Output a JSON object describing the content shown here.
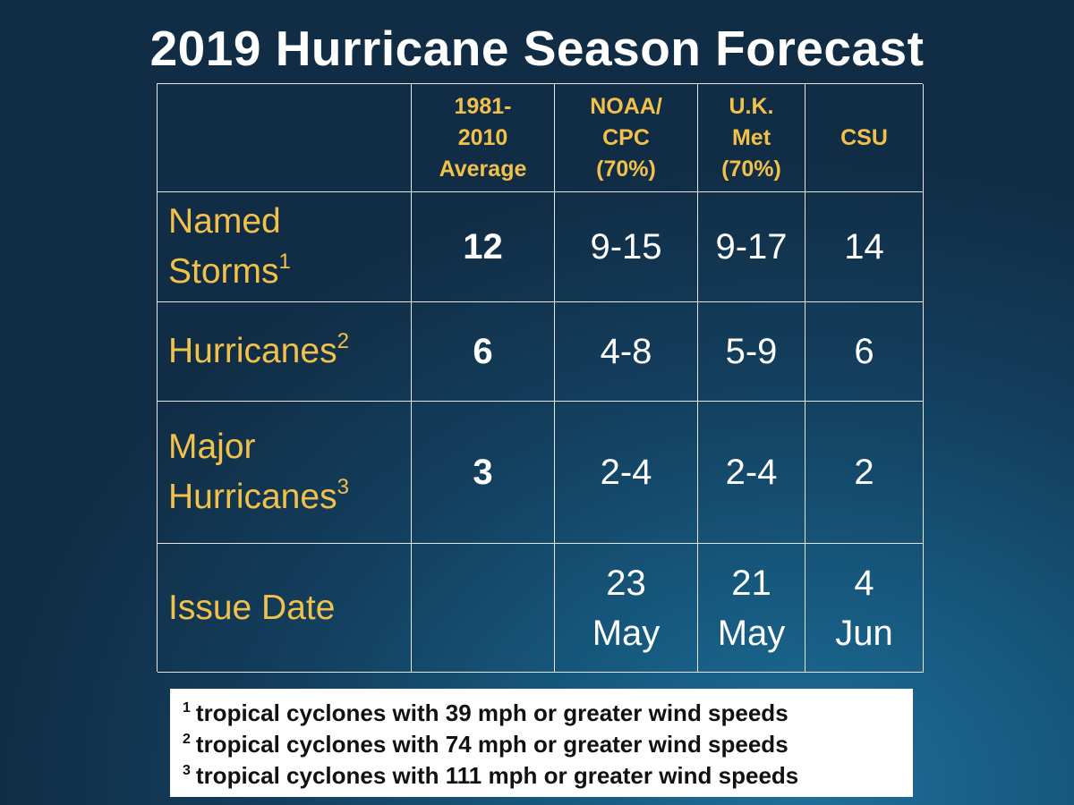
{
  "title": "2019 Hurricane Season Forecast",
  "table": {
    "headers": [
      "",
      "1981-\n2010\nAverage",
      "NOAA/\nCPC\n(70%)",
      "U.K.\nMet\n(70%)",
      "CSU"
    ],
    "rows": [
      {
        "label": "Named\nStorms",
        "sup": "1",
        "values": [
          "12",
          "9-15",
          "9-17",
          "14"
        ]
      },
      {
        "label": "Hurricanes",
        "sup": "2",
        "values": [
          "6",
          "4-8",
          "5-9",
          "6"
        ]
      },
      {
        "label": "Major\nHurricanes",
        "sup": "3",
        "values": [
          "3",
          "2-4",
          "2-4",
          "2"
        ]
      },
      {
        "label": "Issue Date",
        "sup": "",
        "values": [
          "",
          "23\nMay",
          "21\nMay",
          "4\nJun"
        ]
      }
    ]
  },
  "footnotes": [
    {
      "num": "1",
      "text": "tropical cyclones with 39 mph or greater wind speeds"
    },
    {
      "num": "2",
      "text": "tropical cyclones with 74 mph or greater wind speeds"
    },
    {
      "num": "3",
      "text": "tropical cyclones with 111 mph or greater wind speeds"
    }
  ],
  "colors": {
    "header_text": "#f2c14a",
    "value_text": "#ffffff",
    "background": "#133f5e"
  }
}
